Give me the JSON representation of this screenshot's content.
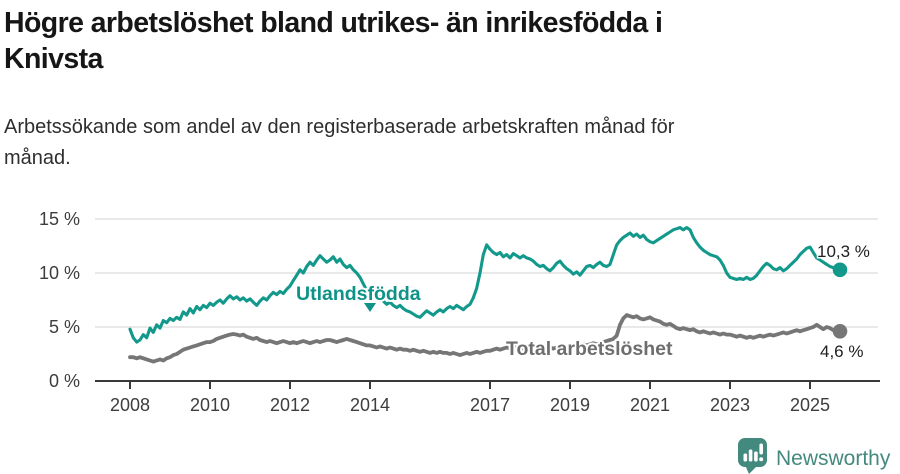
{
  "header": {
    "title_lines": [
      "Högre arbetslöshet bland utrikes- än inrikesfödda i",
      "Knivsta"
    ],
    "subtitle_lines": [
      "Arbetssökande som andel av den registerbaserade arbetskraften månad för",
      "månad."
    ]
  },
  "chart_data": {
    "type": "line",
    "title": "Högre arbetslöshet bland utrikes- än inrikesfödda i Knivsta",
    "subtitle": "Arbetssökande som andel av den registerbaserade arbetskraften månad för månad.",
    "x_start": "2008-01",
    "x_end": "2025-10",
    "x_unit": "month",
    "x_tick_years": [
      2008,
      2010,
      2012,
      2014,
      2017,
      2019,
      2021,
      2023,
      2025
    ],
    "y_ticks": [
      {
        "value": 0,
        "label": "0 %"
      },
      {
        "value": 5,
        "label": "5 %"
      },
      {
        "value": 10,
        "label": "10 %"
      },
      {
        "value": 15,
        "label": "15 %"
      }
    ],
    "ylim": [
      0,
      16.5
    ],
    "grid": "horizontal",
    "legend_position": "inline-labels",
    "series": [
      {
        "name": "Utlandsfödda",
        "color": "#12998b",
        "label_color": "#0f9388",
        "end_label": "10,3 %",
        "end_value": 10.3,
        "values": [
          4.8,
          4.0,
          3.6,
          3.8,
          4.3,
          4.0,
          4.9,
          4.5,
          5.2,
          4.9,
          5.6,
          5.4,
          5.8,
          5.6,
          5.9,
          5.7,
          6.4,
          6.1,
          6.7,
          6.3,
          6.9,
          6.6,
          7.0,
          6.8,
          7.2,
          7.0,
          7.3,
          7.5,
          7.2,
          7.6,
          7.9,
          7.6,
          7.8,
          7.5,
          7.7,
          7.4,
          7.6,
          7.3,
          7.0,
          7.4,
          7.7,
          7.5,
          7.9,
          8.2,
          8.0,
          8.3,
          8.1,
          8.5,
          8.8,
          9.3,
          9.8,
          10.3,
          10.0,
          10.6,
          11.0,
          10.7,
          11.2,
          11.6,
          11.3,
          11.0,
          11.2,
          11.5,
          11.0,
          11.3,
          10.8,
          10.5,
          10.7,
          10.3,
          10.0,
          9.6,
          9.0,
          8.4,
          8.0,
          7.8,
          7.6,
          7.8,
          7.4,
          7.1,
          7.3,
          7.0,
          6.8,
          7.0,
          6.7,
          6.5,
          6.4,
          6.2,
          6.0,
          5.9,
          6.2,
          6.5,
          6.3,
          6.1,
          6.4,
          6.6,
          6.4,
          6.7,
          6.9,
          6.7,
          7.0,
          6.8,
          6.6,
          6.9,
          7.1,
          7.7,
          8.6,
          10.0,
          11.7,
          12.6,
          12.2,
          11.9,
          11.7,
          11.9,
          11.5,
          11.7,
          11.4,
          11.8,
          11.6,
          11.4,
          11.6,
          11.4,
          11.3,
          11.1,
          10.8,
          10.6,
          10.7,
          10.4,
          10.2,
          10.5,
          10.9,
          11.1,
          10.7,
          10.4,
          10.2,
          9.9,
          10.1,
          9.8,
          10.2,
          10.6,
          10.7,
          10.5,
          10.8,
          11.0,
          10.7,
          10.6,
          10.8,
          11.7,
          12.6,
          13.0,
          13.3,
          13.5,
          13.7,
          13.4,
          13.6,
          13.3,
          13.5,
          13.1,
          12.9,
          12.8,
          13.0,
          13.2,
          13.4,
          13.6,
          13.8,
          14.0,
          14.1,
          14.2,
          14.0,
          14.2,
          14.0,
          13.3,
          12.8,
          12.4,
          12.1,
          11.9,
          11.7,
          11.6,
          11.5,
          11.2,
          10.7,
          10.0,
          9.6,
          9.5,
          9.4,
          9.5,
          9.4,
          9.6,
          9.4,
          9.5,
          9.8,
          10.2,
          10.6,
          10.9,
          10.7,
          10.4,
          10.3,
          10.5,
          10.2,
          10.4,
          10.7,
          11.0,
          11.3,
          11.7,
          12.0,
          12.3,
          12.4,
          11.9,
          11.4,
          11.2,
          11.0,
          10.8,
          10.6,
          10.5,
          10.4,
          10.3
        ]
      },
      {
        "name": "Total arbetslöshet",
        "color": "#767676",
        "label_color": "#6e6e6e",
        "end_label": "4,6 %",
        "end_value": 4.6,
        "values": [
          2.2,
          2.2,
          2.1,
          2.2,
          2.1,
          2.0,
          1.9,
          1.8,
          1.9,
          2.0,
          1.9,
          2.1,
          2.2,
          2.4,
          2.5,
          2.7,
          2.9,
          3.0,
          3.1,
          3.2,
          3.3,
          3.4,
          3.5,
          3.6,
          3.6,
          3.7,
          3.9,
          4.0,
          4.1,
          4.2,
          4.3,
          4.35,
          4.3,
          4.2,
          4.3,
          4.1,
          4.0,
          3.9,
          4.0,
          3.8,
          3.7,
          3.6,
          3.7,
          3.6,
          3.5,
          3.6,
          3.7,
          3.6,
          3.5,
          3.6,
          3.5,
          3.6,
          3.7,
          3.6,
          3.5,
          3.6,
          3.7,
          3.6,
          3.7,
          3.8,
          3.8,
          3.7,
          3.6,
          3.7,
          3.8,
          3.9,
          3.8,
          3.7,
          3.6,
          3.5,
          3.4,
          3.3,
          3.3,
          3.2,
          3.1,
          3.2,
          3.1,
          3.0,
          3.1,
          3.0,
          2.9,
          3.0,
          2.9,
          2.9,
          2.8,
          2.9,
          2.8,
          2.7,
          2.8,
          2.7,
          2.6,
          2.7,
          2.6,
          2.7,
          2.6,
          2.6,
          2.5,
          2.6,
          2.5,
          2.4,
          2.5,
          2.6,
          2.5,
          2.6,
          2.7,
          2.6,
          2.7,
          2.8,
          2.8,
          2.9,
          3.0,
          2.9,
          3.0,
          3.1,
          3.0,
          3.1,
          3.2,
          3.1,
          3.0,
          3.1,
          3.1,
          3.2,
          3.1,
          3.0,
          3.1,
          3.2,
          3.1,
          3.0,
          3.1,
          3.2,
          3.1,
          3.2,
          3.2,
          3.3,
          3.2,
          3.3,
          3.4,
          3.3,
          3.4,
          3.5,
          3.4,
          3.5,
          3.6,
          3.7,
          3.8,
          3.9,
          4.2,
          5.2,
          5.8,
          6.1,
          6.0,
          5.9,
          6.0,
          5.8,
          5.7,
          5.8,
          5.9,
          5.7,
          5.6,
          5.5,
          5.3,
          5.2,
          5.3,
          5.1,
          4.9,
          4.8,
          4.9,
          4.8,
          4.7,
          4.8,
          4.6,
          4.5,
          4.6,
          4.5,
          4.4,
          4.5,
          4.4,
          4.3,
          4.4,
          4.3,
          4.3,
          4.2,
          4.1,
          4.2,
          4.1,
          4.0,
          4.1,
          4.0,
          4.1,
          4.2,
          4.1,
          4.2,
          4.3,
          4.2,
          4.3,
          4.4,
          4.5,
          4.4,
          4.5,
          4.6,
          4.7,
          4.6,
          4.7,
          4.8,
          4.9,
          5.0,
          5.2,
          5.0,
          4.8,
          5.0,
          4.9,
          4.7,
          4.8,
          4.6
        ]
      }
    ]
  },
  "footer": {
    "brand": "Newsworthy",
    "brand_color": "#43897e"
  },
  "colors": {
    "accent_teal": "#12998b",
    "line_gray": "#767676",
    "grid": "#dcdcdc",
    "axis": "#3a3a3a",
    "title_text": "#161616",
    "subtitle_text": "#2e2e2e"
  }
}
